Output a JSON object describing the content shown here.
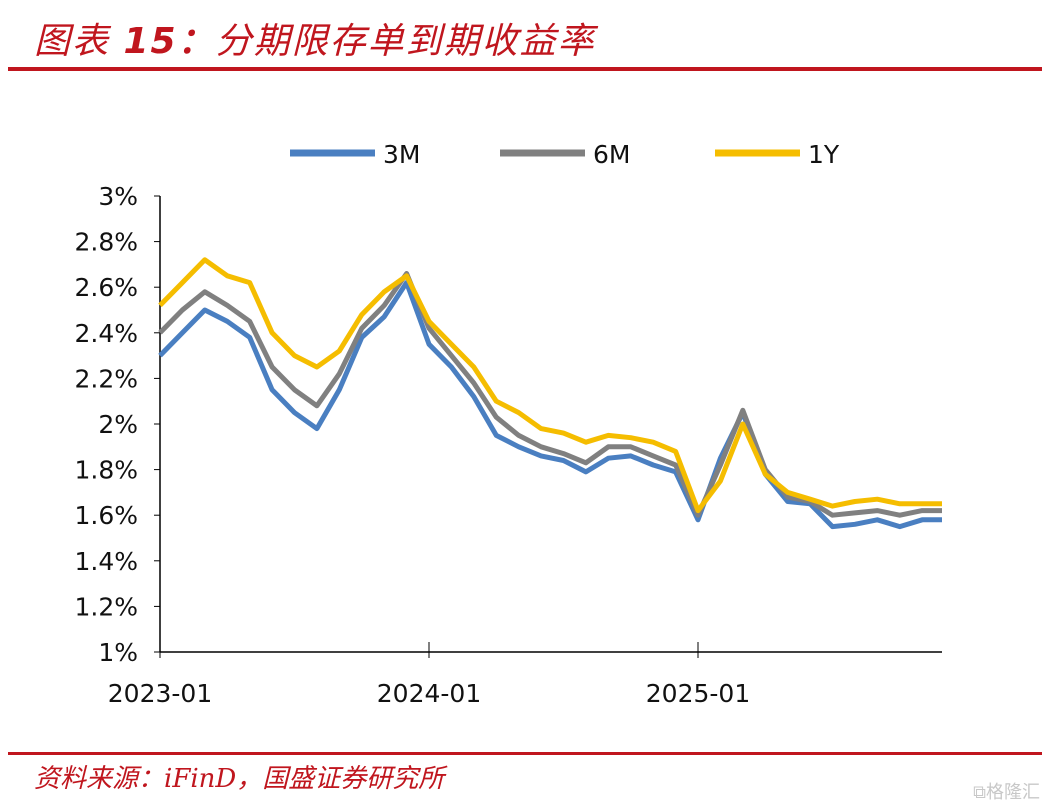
{
  "header": {
    "label": "图表",
    "number": "15：",
    "title": "分期限存单到期收益率"
  },
  "footer": {
    "source": "资料来源：iFinD，国盛证券研究所",
    "watermark": "格隆汇"
  },
  "chart_data": {
    "type": "line",
    "title": "",
    "xlabel": "",
    "ylabel": "",
    "ylim": [
      1.0,
      3.0
    ],
    "y_ticks": [
      "1%",
      "1.2%",
      "1.4%",
      "1.6%",
      "1.8%",
      "2%",
      "2.2%",
      "2.4%",
      "2.6%",
      "2.8%",
      "3%"
    ],
    "x_ticks": [
      "2023-01",
      "2024-01",
      "2025-01"
    ],
    "xlim": [
      "2023-01",
      "2025-11"
    ],
    "legend": "top",
    "grid": false,
    "x": [
      "2023-01",
      "2023-02",
      "2023-03",
      "2023-04",
      "2023-05",
      "2023-06",
      "2023-07",
      "2023-08",
      "2023-09",
      "2023-10",
      "2023-11",
      "2023-12",
      "2024-01",
      "2024-02",
      "2024-03",
      "2024-04",
      "2024-05",
      "2024-06",
      "2024-07",
      "2024-08",
      "2024-09",
      "2024-10",
      "2024-11",
      "2024-12",
      "2025-01",
      "2025-02",
      "2025-03",
      "2025-04",
      "2025-05",
      "2025-06",
      "2025-07",
      "2025-08",
      "2025-09",
      "2025-10",
      "2025-11"
    ],
    "series": [
      {
        "name": "3M",
        "color": "#4a7fc1",
        "values": [
          2.3,
          2.4,
          2.5,
          2.45,
          2.38,
          2.15,
          2.05,
          1.98,
          2.15,
          2.38,
          2.47,
          2.62,
          2.35,
          2.25,
          2.12,
          1.95,
          1.9,
          1.86,
          1.84,
          1.79,
          1.85,
          1.86,
          1.82,
          1.79,
          1.58,
          1.85,
          2.05,
          1.78,
          1.66,
          1.65,
          1.55,
          1.56,
          1.58,
          1.55,
          1.58
        ]
      },
      {
        "name": "6M",
        "color": "#808080",
        "values": [
          2.4,
          2.5,
          2.58,
          2.52,
          2.45,
          2.25,
          2.15,
          2.08,
          2.22,
          2.42,
          2.52,
          2.66,
          2.42,
          2.3,
          2.18,
          2.03,
          1.95,
          1.9,
          1.87,
          1.83,
          1.9,
          1.9,
          1.86,
          1.82,
          1.6,
          1.82,
          2.06,
          1.8,
          1.68,
          1.66,
          1.6,
          1.61,
          1.62,
          1.6,
          1.62
        ]
      },
      {
        "name": "1Y",
        "color": "#f5bd00",
        "values": [
          2.52,
          2.62,
          2.72,
          2.65,
          2.62,
          2.4,
          2.3,
          2.25,
          2.32,
          2.48,
          2.58,
          2.65,
          2.45,
          2.35,
          2.25,
          2.1,
          2.05,
          1.98,
          1.96,
          1.92,
          1.95,
          1.94,
          1.92,
          1.88,
          1.62,
          1.75,
          2.0,
          1.78,
          1.7,
          1.67,
          1.64,
          1.66,
          1.67,
          1.65,
          1.65
        ]
      }
    ]
  }
}
